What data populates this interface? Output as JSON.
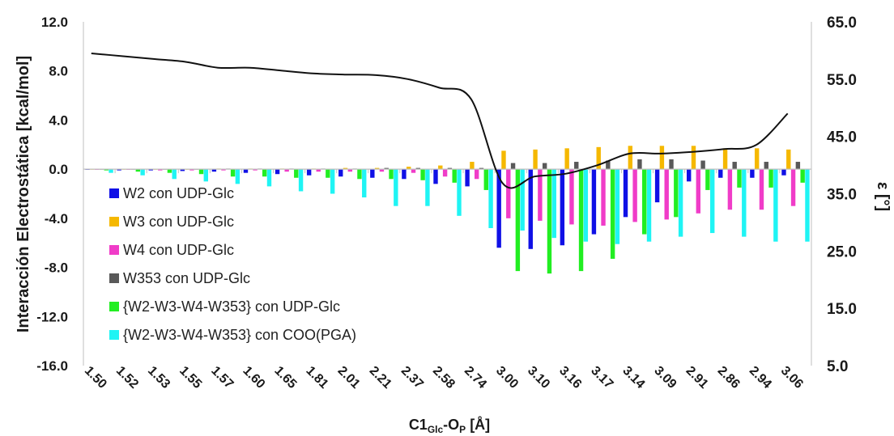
{
  "chart_data": {
    "type": "bar",
    "xlabel_main": "C1",
    "xlabel_sub1": "Glc",
    "xlabel_mid": "-O",
    "xlabel_sub2": "P",
    "xlabel_end": " [Å]",
    "ylabel": "Interacción Electrostática [kcal/mol]",
    "y2label": "ε [°]",
    "ylim": [
      -16,
      12
    ],
    "yticks": [
      "12.0",
      "8.0",
      "4.0",
      "0.0",
      "-4.0",
      "-8.0",
      "-12.0",
      "-16.0"
    ],
    "y2lim": [
      5,
      65
    ],
    "y2ticks": [
      "65.0",
      "55.0",
      "45.0",
      "35.0",
      "25.0",
      "15.0",
      "5.0"
    ],
    "categories": [
      "1.50",
      "1.52",
      "1.53",
      "1.55",
      "1.57",
      "1.60",
      "1.65",
      "1.81",
      "2.01",
      "2.21",
      "2.37",
      "2.58",
      "2.74",
      "3.00",
      "3.10",
      "3.16",
      "3.17",
      "3.14",
      "3.09",
      "2.91",
      "2.86",
      "2.94",
      "3.06"
    ],
    "series": [
      {
        "name": "W2 con UDP-Glc",
        "color": "#1010e6",
        "values": [
          -0.05,
          -0.1,
          -0.1,
          -0.15,
          -0.2,
          -0.3,
          -0.4,
          -0.5,
          -0.6,
          -0.7,
          -0.8,
          -1.2,
          -1.4,
          -6.4,
          -6.5,
          -6.2,
          -5.3,
          -3.9,
          -2.7,
          -1.0,
          -0.7,
          -0.7,
          -0.5
        ]
      },
      {
        "name": "W3 con UDP-Glc",
        "color": "#f5b800",
        "values": [
          0.0,
          0.0,
          0.0,
          0.0,
          0.05,
          0.05,
          0.05,
          0.05,
          0.1,
          0.1,
          0.2,
          0.3,
          0.6,
          1.5,
          1.6,
          1.7,
          1.8,
          1.9,
          1.9,
          1.9,
          1.7,
          1.7,
          1.6
        ]
      },
      {
        "name": "W4 con UDP-Glc",
        "color": "#f03cc8",
        "values": [
          -0.05,
          -0.05,
          -0.1,
          -0.1,
          -0.1,
          -0.1,
          -0.2,
          -0.2,
          -0.2,
          -0.2,
          -0.3,
          -0.6,
          -0.8,
          -4.0,
          -4.2,
          -4.5,
          -4.6,
          -4.3,
          -4.1,
          -3.6,
          -3.3,
          -3.3,
          -3.0
        ]
      },
      {
        "name": "W353 con UDP-Glc",
        "color": "#595959",
        "values": [
          0.0,
          0.0,
          0.0,
          0.0,
          0.05,
          0.05,
          0.05,
          0.05,
          0.05,
          0.1,
          0.1,
          0.1,
          0.1,
          0.5,
          0.5,
          0.6,
          0.7,
          0.8,
          0.8,
          0.7,
          0.6,
          0.6,
          0.6
        ]
      },
      {
        "name": "{W2-W3-W4-W353} con UDP-Glc",
        "color": "#22ee22",
        "values": [
          -0.1,
          -0.2,
          -0.3,
          -0.4,
          -0.6,
          -0.6,
          -0.7,
          -0.7,
          -0.8,
          -0.8,
          -0.9,
          -1.1,
          -1.7,
          -8.3,
          -8.5,
          -8.3,
          -7.3,
          -5.3,
          -3.9,
          -1.7,
          -1.5,
          -1.5,
          -1.1
        ]
      },
      {
        "name": "{W2-W3-W4-W353} con COO(PGA)",
        "color": "#1ff4f4",
        "values": [
          -0.3,
          -0.5,
          -0.8,
          -1.0,
          -1.2,
          -1.4,
          -1.8,
          -2.0,
          -2.3,
          -3.0,
          -3.0,
          -3.8,
          -4.8,
          -5.0,
          -5.6,
          -5.9,
          -6.1,
          -5.9,
          -5.5,
          -5.2,
          -5.5,
          -5.9,
          -5.9
        ]
      }
    ],
    "line": {
      "axis": "secondary",
      "color": "#111111",
      "values": [
        59.5,
        59.0,
        58.5,
        58.0,
        57.0,
        57.0,
        56.5,
        56.0,
        55.8,
        55.7,
        55.0,
        53.5,
        51.5,
        36.8,
        38.0,
        38.5,
        40.0,
        42.0,
        42.0,
        42.3,
        42.8,
        43.5,
        49.0
      ]
    },
    "legend": "left",
    "grid": false
  }
}
